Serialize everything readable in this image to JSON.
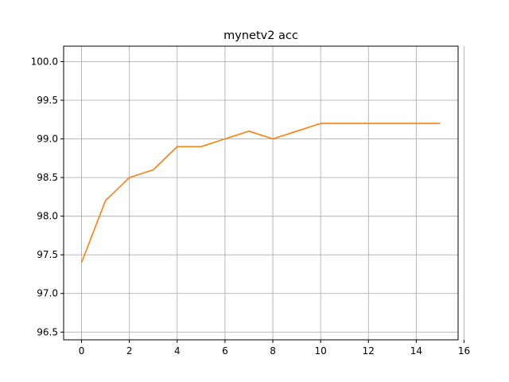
{
  "chart_data": {
    "type": "line",
    "title": "mynetv2 acc",
    "xlabel": "",
    "ylabel": "",
    "xlim": [
      -0.75,
      15.75
    ],
    "ylim": [
      96.4,
      100.2
    ],
    "grid": true,
    "x_ticks": [
      0,
      2,
      4,
      6,
      8,
      10,
      12,
      14,
      16
    ],
    "x_tick_labels": [
      "0",
      "2",
      "4",
      "6",
      "8",
      "10",
      "12",
      "14",
      "16"
    ],
    "y_ticks": [
      96.5,
      97.0,
      97.5,
      98.0,
      98.5,
      99.0,
      99.5,
      100.0
    ],
    "y_tick_labels": [
      "96.5",
      "97.0",
      "97.5",
      "98.0",
      "98.5",
      "99.0",
      "99.5",
      "100.0"
    ],
    "series": [
      {
        "color": "#ff7f0e",
        "x": [
          0,
          1,
          2,
          3,
          4,
          5,
          6,
          7,
          8,
          9,
          10,
          11,
          12,
          13,
          14,
          15
        ],
        "values": [
          97.4,
          98.2,
          98.5,
          98.6,
          98.9,
          98.9,
          99.0,
          99.1,
          99.0,
          99.1,
          99.2,
          99.2,
          99.2,
          99.2,
          99.2,
          99.2
        ]
      }
    ]
  }
}
